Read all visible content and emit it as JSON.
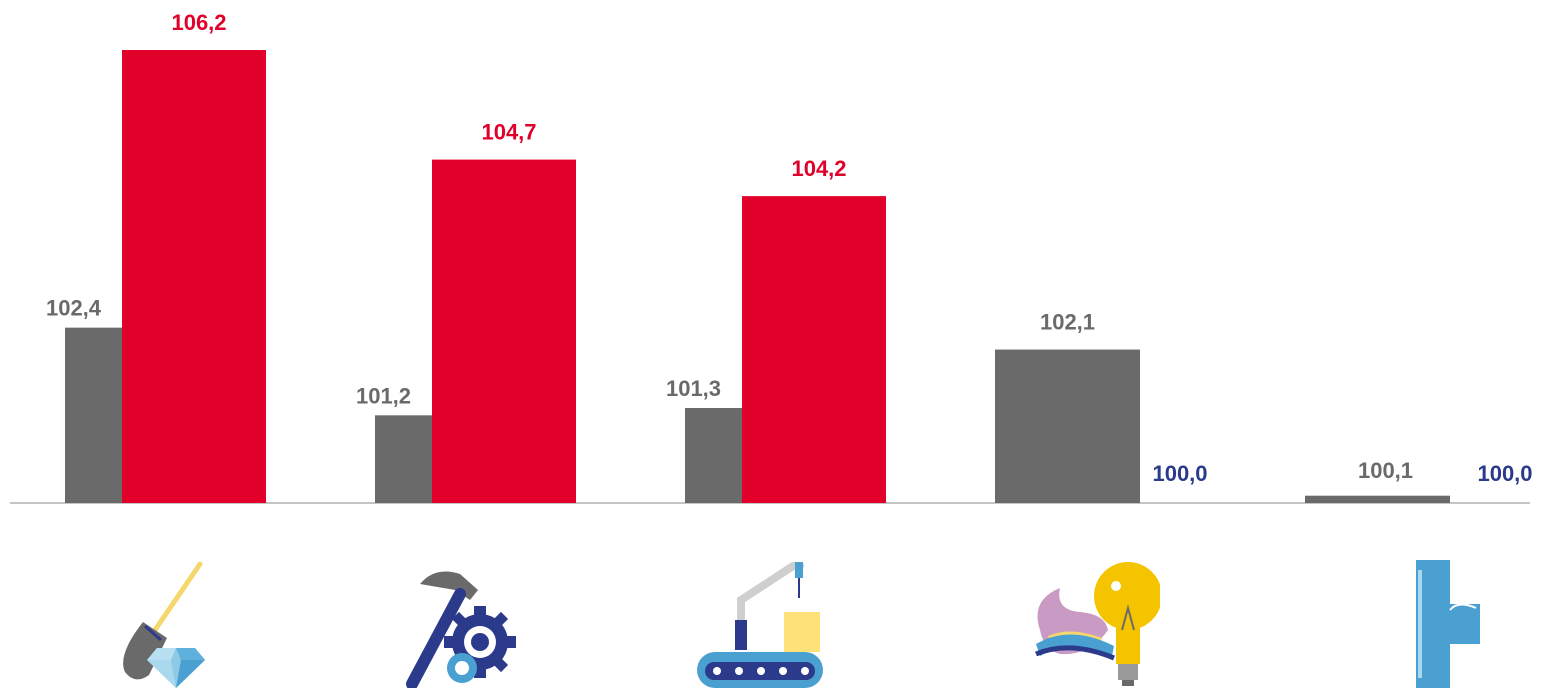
{
  "chart_data": {
    "type": "bar",
    "categories": [
      "mining",
      "manufacturing",
      "processing-industries",
      "energy-supply",
      "water-supply"
    ],
    "series": [
      {
        "values": [
          102.4,
          101.2,
          101.3,
          102.1,
          100.1
        ],
        "color": "#6a6a6a"
      },
      {
        "values": [
          106.2,
          104.7,
          104.2,
          100.0,
          100.0
        ],
        "color": "#e1002a"
      }
    ],
    "data_labels": {
      "series_0": [
        "102,4",
        "101,2",
        "101,3",
        "102,1",
        "100,1"
      ],
      "series_1": [
        "106,2",
        "104,7",
        "104,2",
        "100,0",
        "100,0"
      ]
    },
    "label_colors": {
      "grey": "#6a6a6a",
      "red": "#e1002a",
      "blue": "#2b3a8a"
    },
    "baseline_value": 100.0,
    "ylim": [
      100.0,
      106.2
    ],
    "axis_color": "#b0b0b0",
    "grid": false,
    "legend": "none"
  },
  "icons": [
    "shovel-diamond-icon",
    "hammer-gear-icon",
    "conveyor-robot-icon",
    "gas-flame-bulb-icon",
    "water-pipe-icon"
  ]
}
